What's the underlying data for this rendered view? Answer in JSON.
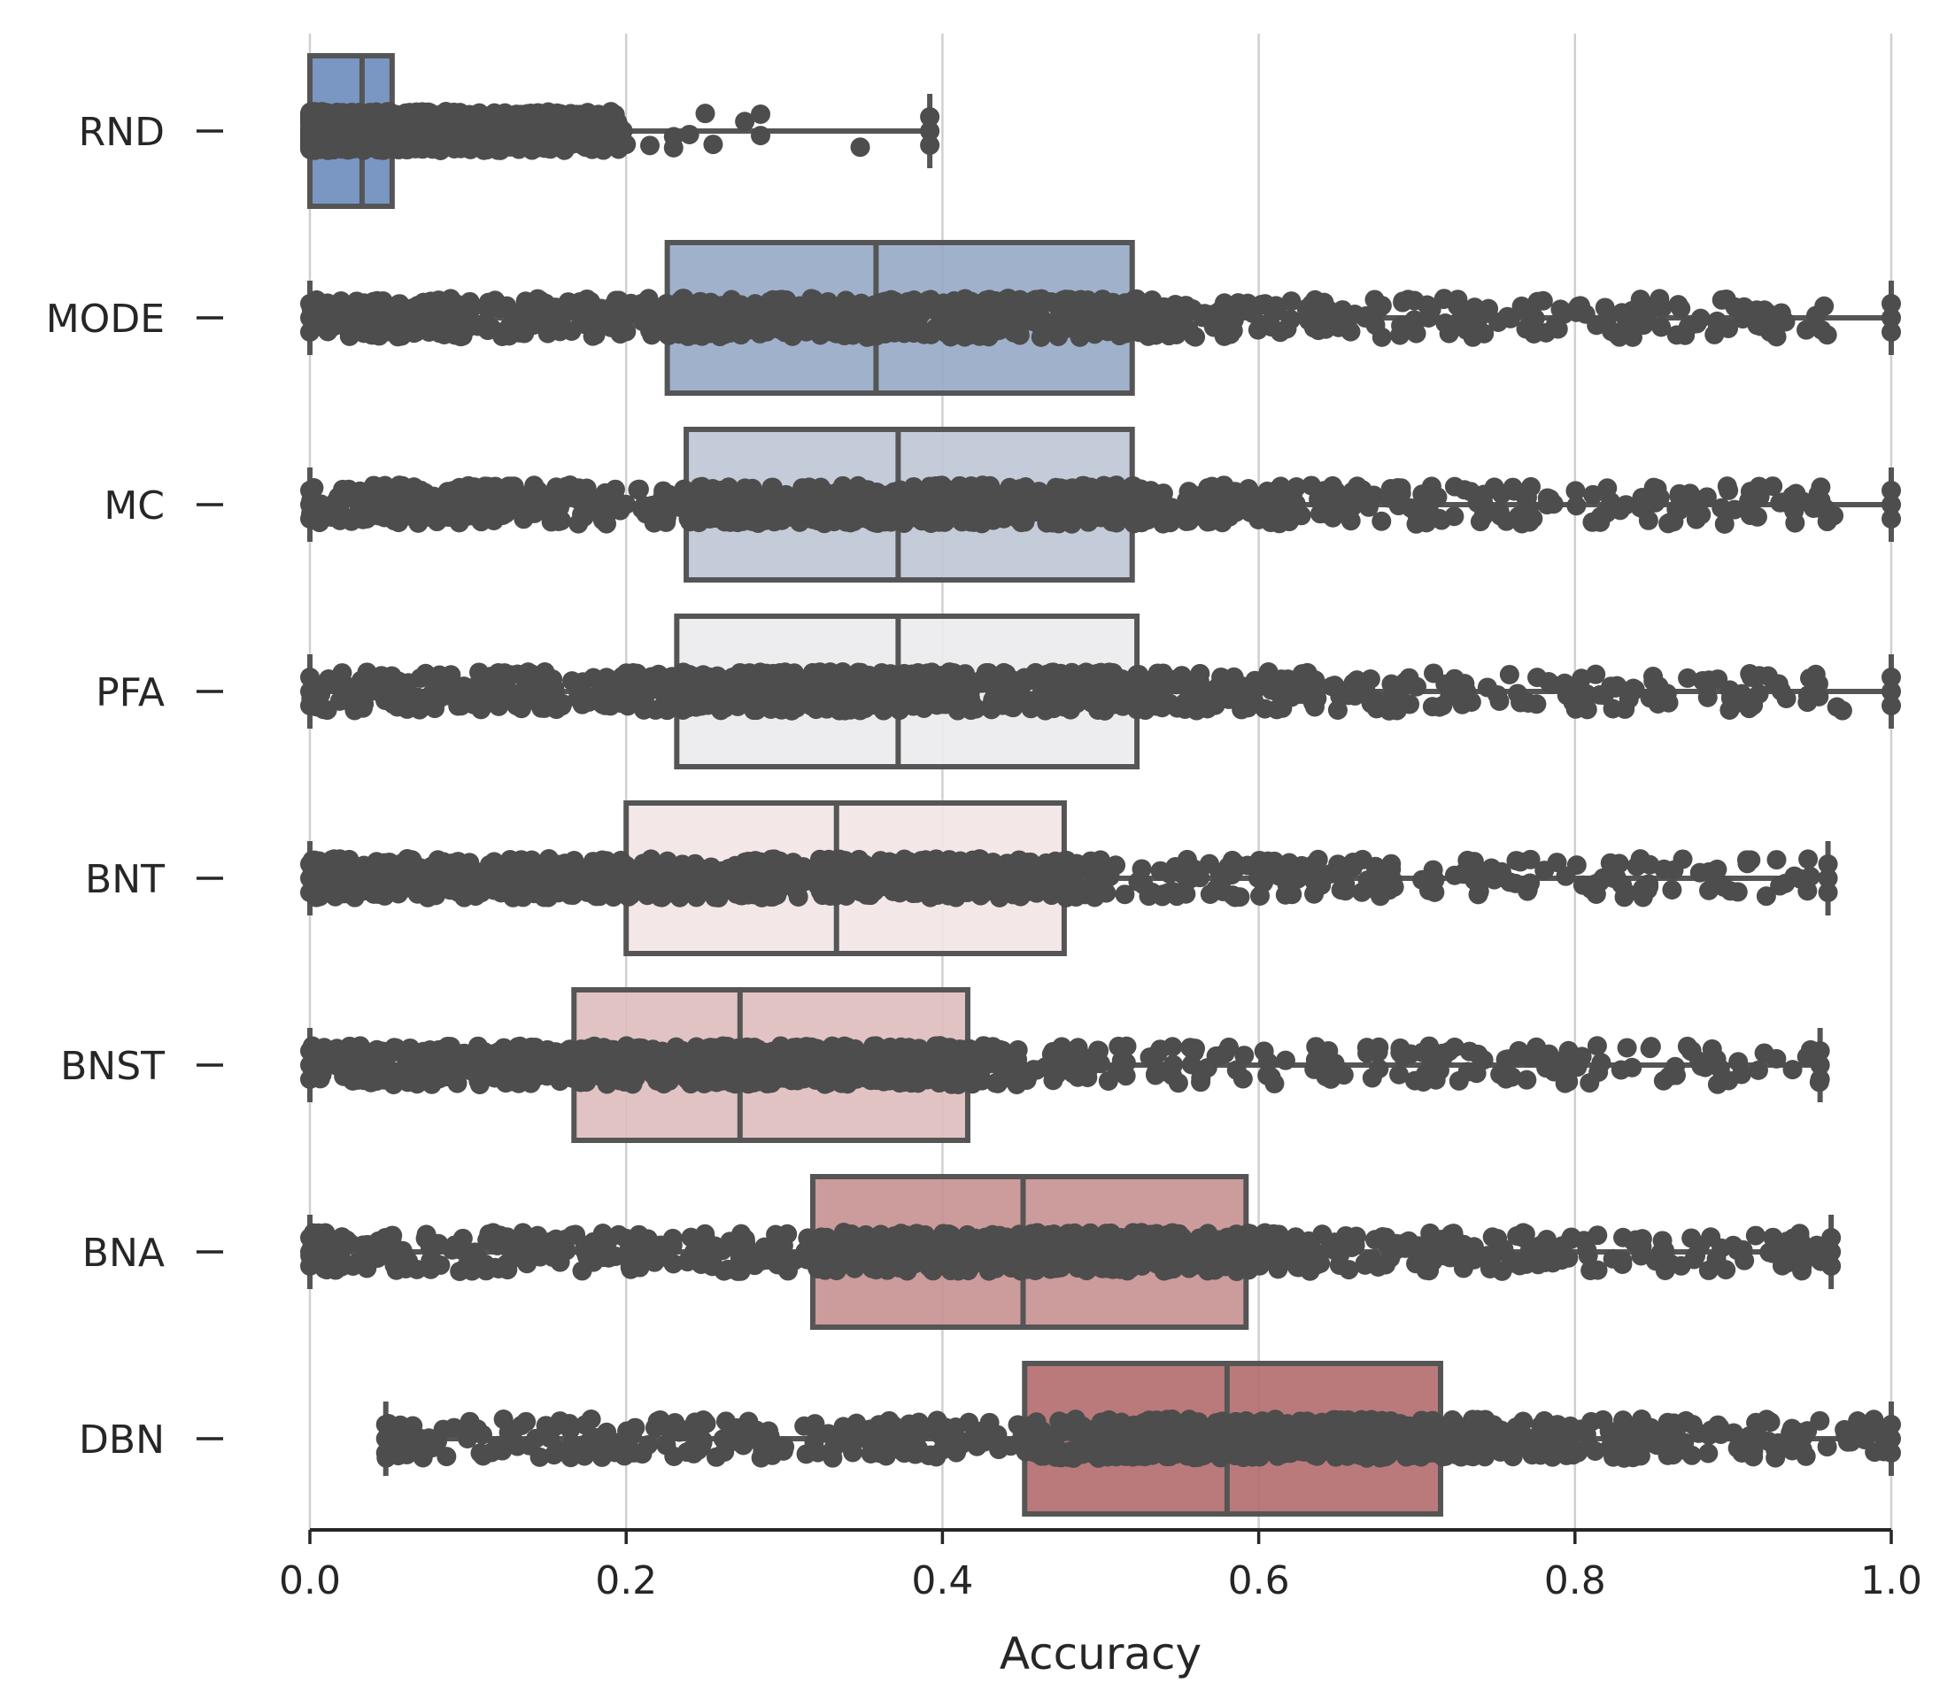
{
  "chart_data": {
    "type": "boxplot",
    "orientation": "horizontal",
    "title": "",
    "xlabel": "Accuracy",
    "ylabel": "",
    "xlim": [
      0.0,
      1.0
    ],
    "xticks": [
      "0.0",
      "0.2",
      "0.4",
      "0.6",
      "0.8",
      "1.0"
    ],
    "grid": "vertical",
    "legend": "none",
    "point_color": "#4d4d4d",
    "edge_color": "#555555",
    "series": [
      {
        "name": "RND",
        "whisker_low": 0.0,
        "q1": 0.0,
        "median": 0.033,
        "q3": 0.052,
        "whisker_high": 0.392,
        "color": "#6b8cbd",
        "spread_end": 0.2,
        "outliers": [
          0.2,
          0.215,
          0.23,
          0.25,
          0.275,
          0.23,
          0.24,
          0.255,
          0.285,
          0.285,
          0.348
        ]
      },
      {
        "name": "MODE",
        "whisker_low": 0.0,
        "q1": 0.226,
        "median": 0.358,
        "q3": 0.52,
        "whisker_high": 1.0,
        "color": "#96a8c6",
        "spread_end": 0.96
      },
      {
        "name": "MC",
        "whisker_low": 0.0,
        "q1": 0.238,
        "median": 0.372,
        "q3": 0.52,
        "whisker_high": 1.0,
        "color": "#bec7d6",
        "spread_end": 0.97
      },
      {
        "name": "PFA",
        "whisker_low": 0.0,
        "q1": 0.232,
        "median": 0.372,
        "q3": 0.523,
        "whisker_high": 1.0,
        "color": "#ebebed",
        "spread_end": 0.97
      },
      {
        "name": "BNT",
        "whisker_low": 0.0,
        "q1": 0.2,
        "median": 0.333,
        "q3": 0.477,
        "whisker_high": 0.96,
        "color": "#f2e4e5",
        "spread_end": 0.955
      },
      {
        "name": "BNST",
        "whisker_low": 0.0,
        "q1": 0.167,
        "median": 0.272,
        "q3": 0.416,
        "whisker_high": 0.955,
        "color": "#dfbcbd",
        "spread_end": 0.955
      },
      {
        "name": "BNA",
        "whisker_low": 0.0,
        "q1": 0.318,
        "median": 0.451,
        "q3": 0.592,
        "whisker_high": 0.962,
        "color": "#c69091",
        "spread_end": 0.962
      },
      {
        "name": "DBN",
        "whisker_low": 0.048,
        "q1": 0.452,
        "median": 0.58,
        "q3": 0.715,
        "whisker_high": 1.0,
        "color": "#b36c6d",
        "spread_end": 1.0
      }
    ]
  }
}
